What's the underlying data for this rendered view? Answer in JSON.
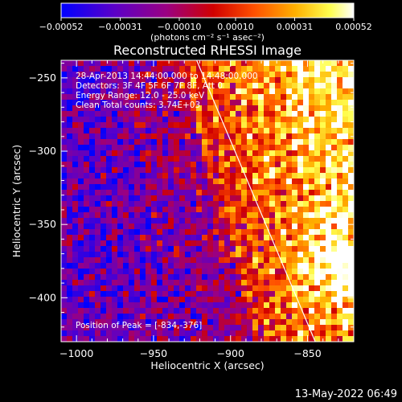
{
  "chart_data": {
    "type": "heatmap",
    "title": "Reconstructed RHESSI Image",
    "xlabel": "Heliocentric X (arcsec)",
    "ylabel": "Heliocentric Y (arcsec)",
    "xlim": [
      -1010,
      -820
    ],
    "ylim": [
      -430,
      -238
    ],
    "x_ticks": [
      -1000,
      -950,
      -900,
      -850
    ],
    "x_tick_labels": [
      "−1000",
      "−950",
      "−900",
      "−850"
    ],
    "y_ticks": [
      -250,
      -300,
      -350,
      -400
    ],
    "y_tick_labels": [
      "−250",
      "−300",
      "−350",
      "−400"
    ],
    "annotations": [
      "28-Apr-2013 14:44:00.000 to 14:48:00.000",
      "Detectors: 3F 4F 5F 6F 7F 8F, Att 0",
      "Energy Range: 12.0 - 25.0 keV",
      "Clean    Total counts: 3.74E+03"
    ],
    "peak_label": "Position of Peak = [-834,-376]",
    "peak": [
      -834,
      -376
    ],
    "limb_line": {
      "x": [
        -922,
        -845
      ],
      "y": [
        -238,
        -430
      ]
    },
    "colorbar": {
      "range": [
        -0.00052,
        0.00052
      ],
      "ticks": [
        -0.00052,
        -0.00031,
        -0.0001,
        0.0001,
        0.00031,
        0.00052
      ],
      "tick_labels": [
        "−0.00052",
        "−0.00031",
        "−0.00010",
        "0.00010",
        "0.00031",
        "0.00052"
      ],
      "units_label": "(photons cm⁻² s⁻¹ asec⁻²)",
      "colors": [
        "#0000ff",
        "#5a00c8",
        "#9a0082",
        "#d00000",
        "#ff5000",
        "#ffb000",
        "#ffff50",
        "#ffffff"
      ]
    }
  },
  "timestamp": "13-May-2022 06:49"
}
